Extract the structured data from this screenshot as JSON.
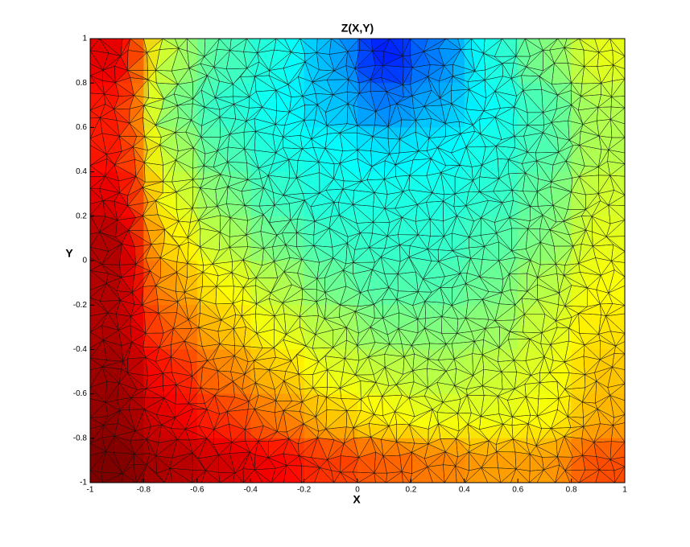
{
  "chart_data": {
    "type": "heatmap",
    "title": "Z(X,Y)",
    "x_label": "X",
    "y_label": "Y",
    "colormap": "jet",
    "x": [
      -0.9,
      -0.7,
      -0.5,
      -0.3,
      -0.1,
      0.1,
      0.3,
      0.5,
      0.7,
      0.9
    ],
    "y": [
      0.9,
      0.7,
      0.5,
      0.3,
      0.1,
      -0.1,
      -0.3,
      -0.5,
      -0.7,
      -0.9
    ],
    "z": [
      [
        0.9,
        0.55,
        0.45,
        0.4,
        0.3,
        0.15,
        0.25,
        0.4,
        0.5,
        0.6
      ],
      [
        0.85,
        0.5,
        0.42,
        0.38,
        0.32,
        0.25,
        0.3,
        0.38,
        0.45,
        0.55
      ],
      [
        0.85,
        0.55,
        0.45,
        0.4,
        0.38,
        0.35,
        0.37,
        0.4,
        0.45,
        0.55
      ],
      [
        0.9,
        0.6,
        0.5,
        0.43,
        0.4,
        0.4,
        0.4,
        0.42,
        0.48,
        0.58
      ],
      [
        0.95,
        0.65,
        0.55,
        0.48,
        0.43,
        0.42,
        0.42,
        0.45,
        0.5,
        0.6
      ],
      [
        0.95,
        0.72,
        0.62,
        0.55,
        0.48,
        0.45,
        0.45,
        0.48,
        0.55,
        0.62
      ],
      [
        0.95,
        0.78,
        0.68,
        0.6,
        0.55,
        0.5,
        0.5,
        0.52,
        0.58,
        0.65
      ],
      [
        0.97,
        0.85,
        0.75,
        0.68,
        0.6,
        0.57,
        0.55,
        0.57,
        0.6,
        0.68
      ],
      [
        0.98,
        0.9,
        0.82,
        0.75,
        0.68,
        0.63,
        0.6,
        0.6,
        0.62,
        0.7
      ],
      [
        1,
        0.95,
        0.92,
        0.88,
        0.82,
        0.78,
        0.75,
        0.72,
        0.72,
        0.8
      ]
    ],
    "xlim": [
      -1,
      1
    ],
    "ylim": [
      -1,
      1
    ],
    "xticks": [
      -1,
      -0.8,
      -0.6,
      -0.4,
      -0.2,
      0,
      0.2,
      0.4,
      0.6,
      0.8,
      1
    ],
    "yticks": [
      -1,
      -0.8,
      -0.6,
      -0.4,
      -0.2,
      0,
      0.2,
      0.4,
      0.6,
      0.8,
      1
    ]
  }
}
